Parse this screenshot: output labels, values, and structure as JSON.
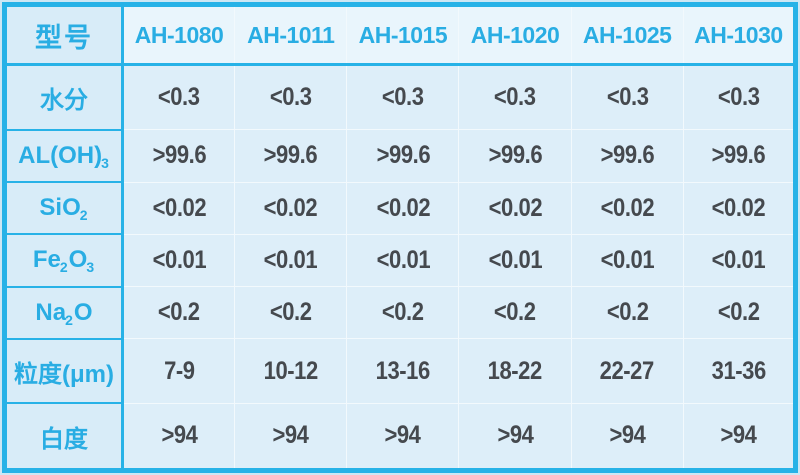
{
  "colors": {
    "accent": "#29ade3",
    "border": "#27b2e7",
    "page_bg": "#cde7f4",
    "cell_bg": "#ddeef9",
    "header_cell_bg": "#e9f5fc",
    "corner_cell_bg": "#d8ecf8",
    "grid_line": "#f2f9fd",
    "value_text": "#45494e"
  },
  "table": {
    "header": {
      "label": "型号",
      "models": [
        "AH-1080",
        "AH-1011",
        "AH-1015",
        "AH-1020",
        "AH-1025",
        "AH-1030"
      ]
    },
    "rows": [
      {
        "name": "moisture",
        "label_segments": [
          {
            "t": "水分",
            "sub": false
          }
        ],
        "values": [
          "<0.3",
          "<0.3",
          "<0.3",
          "<0.3",
          "<0.3",
          "<0.3"
        ]
      },
      {
        "name": "al-oh-3",
        "label_segments": [
          {
            "t": "AL(OH)",
            "sub": false
          },
          {
            "t": "3",
            "sub": true
          }
        ],
        "values": [
          ">99.6",
          ">99.6",
          ">99.6",
          ">99.6",
          ">99.6",
          ">99.6"
        ]
      },
      {
        "name": "sio2",
        "label_segments": [
          {
            "t": "SiO",
            "sub": false
          },
          {
            "t": "2",
            "sub": true
          }
        ],
        "values": [
          "<0.02",
          "<0.02",
          "<0.02",
          "<0.02",
          "<0.02",
          "<0.02"
        ]
      },
      {
        "name": "fe2o3",
        "label_segments": [
          {
            "t": "Fe",
            "sub": false
          },
          {
            "t": "2",
            "sub": true
          },
          {
            "t": "O",
            "sub": false
          },
          {
            "t": "3",
            "sub": true
          }
        ],
        "values": [
          "<0.01",
          "<0.01",
          "<0.01",
          "<0.01",
          "<0.01",
          "<0.01"
        ]
      },
      {
        "name": "na2o",
        "label_segments": [
          {
            "t": "Na",
            "sub": false
          },
          {
            "t": "2",
            "sub": true
          },
          {
            "t": "O",
            "sub": false
          }
        ],
        "values": [
          "<0.2",
          "<0.2",
          "<0.2",
          "<0.2",
          "<0.2",
          "<0.2"
        ]
      },
      {
        "name": "particle-size",
        "label_segments": [
          {
            "t": "粒度(μm)",
            "sub": false
          }
        ],
        "values": [
          "7-9",
          "10-12",
          "13-16",
          "18-22",
          "22-27",
          "31-36"
        ]
      },
      {
        "name": "whiteness",
        "label_segments": [
          {
            "t": "白度",
            "sub": false
          }
        ],
        "values": [
          ">94",
          ">94",
          ">94",
          ">94",
          ">94",
          ">94"
        ]
      }
    ]
  },
  "chart_data": {
    "type": "table",
    "columns": [
      "型号",
      "AH-1080",
      "AH-1011",
      "AH-1015",
      "AH-1020",
      "AH-1025",
      "AH-1030"
    ],
    "rows": [
      [
        "水分",
        "<0.3",
        "<0.3",
        "<0.3",
        "<0.3",
        "<0.3",
        "<0.3"
      ],
      [
        "AL(OH)3",
        ">99.6",
        ">99.6",
        ">99.6",
        ">99.6",
        ">99.6",
        ">99.6"
      ],
      [
        "SiO2",
        "<0.02",
        "<0.02",
        "<0.02",
        "<0.02",
        "<0.02",
        "<0.02"
      ],
      [
        "Fe2O3",
        "<0.01",
        "<0.01",
        "<0.01",
        "<0.01",
        "<0.01",
        "<0.01"
      ],
      [
        "Na2O",
        "<0.2",
        "<0.2",
        "<0.2",
        "<0.2",
        "<0.2",
        "<0.2"
      ],
      [
        "粒度(μm)",
        "7-9",
        "10-12",
        "13-16",
        "18-22",
        "22-27",
        "31-36"
      ],
      [
        "白度",
        ">94",
        ">94",
        ">94",
        ">94",
        ">94",
        ">94"
      ]
    ]
  }
}
